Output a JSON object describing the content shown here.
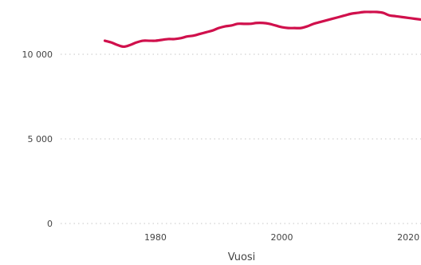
{
  "chart_data": {
    "type": "line",
    "title": "",
    "xlabel": "Vuosi",
    "ylabel": "",
    "xlim": [
      1965,
      2022
    ],
    "ylim": [
      0,
      13500
    ],
    "grid": true,
    "x_ticks": [
      1980,
      2000,
      2020
    ],
    "x_tick_labels": [
      "1980",
      "2000",
      "2020"
    ],
    "y_ticks": [
      0,
      5000,
      10000
    ],
    "y_tick_labels": [
      "0",
      "5 000",
      "10 000"
    ],
    "series": [
      {
        "color": "#d0104c",
        "x": [
          1972,
          1973,
          1974,
          1975,
          1976,
          1977,
          1978,
          1979,
          1980,
          1981,
          1982,
          1983,
          1984,
          1985,
          1986,
          1987,
          1988,
          1989,
          1990,
          1991,
          1992,
          1993,
          1994,
          1995,
          1996,
          1997,
          1998,
          1999,
          2000,
          2001,
          2002,
          2003,
          2004,
          2005,
          2006,
          2007,
          2008,
          2009,
          2010,
          2011,
          2012,
          2013,
          2014,
          2015,
          2016,
          2017,
          2018,
          2019,
          2020,
          2021,
          2022
        ],
        "values": [
          10800,
          10700,
          10550,
          10450,
          10550,
          10700,
          10800,
          10800,
          10800,
          10850,
          10900,
          10900,
          10950,
          11050,
          11100,
          11200,
          11300,
          11400,
          11550,
          11650,
          11700,
          11800,
          11800,
          11800,
          11850,
          11850,
          11800,
          11700,
          11600,
          11550,
          11550,
          11550,
          11650,
          11800,
          11900,
          12000,
          12100,
          12200,
          12300,
          12400,
          12450,
          12500,
          12500,
          12500,
          12450,
          12300,
          12250,
          12200,
          12150,
          12100,
          12050
        ]
      }
    ]
  }
}
